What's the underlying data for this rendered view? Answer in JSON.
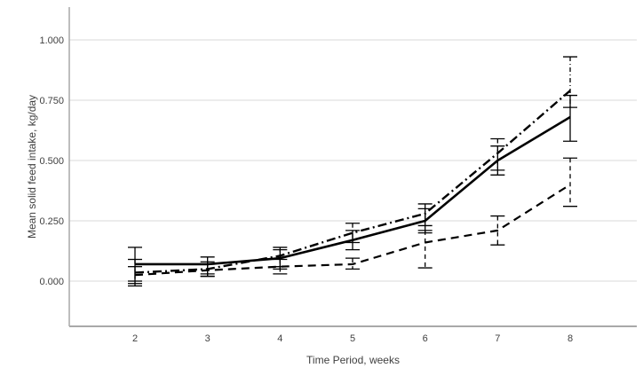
{
  "chart_data": {
    "type": "line",
    "title": "",
    "xlabel": "Time Period, weeks",
    "ylabel": "Mean solid feed intake, kg/day",
    "x": [
      2,
      3,
      4,
      5,
      6,
      7,
      8
    ],
    "x_tick_labels": [
      "2",
      "3",
      "4",
      "5",
      "6",
      "7",
      "8"
    ],
    "y_tick_values": [
      0.0,
      0.25,
      0.5,
      0.75,
      1.0
    ],
    "y_tick_labels": [
      "0.000",
      "0.250",
      "0.500",
      "0.750",
      "1.000"
    ],
    "xlim": [
      1.1,
      8.9
    ],
    "ylim": [
      -0.19,
      1.14
    ],
    "grid": "horizontal",
    "legend": "none",
    "error_bars": true,
    "series": [
      {
        "name": "dashed",
        "line_style": "dashed",
        "color": "#000000",
        "values": [
          0.025,
          0.045,
          0.06,
          0.07,
          0.16,
          0.21,
          0.4
        ],
        "ci": [
          [
            -0.01,
            0.06
          ],
          [
            0.02,
            0.07
          ],
          [
            0.03,
            0.09
          ],
          [
            0.05,
            0.095
          ],
          [
            0.055,
            0.21
          ],
          [
            0.15,
            0.27
          ],
          [
            0.31,
            0.51
          ]
        ]
      },
      {
        "name": "solid",
        "line_style": "solid",
        "color": "#000000",
        "values": [
          0.07,
          0.07,
          0.095,
          0.17,
          0.25,
          0.5,
          0.68
        ],
        "ci": [
          [
            -0.02,
            0.14
          ],
          [
            0.03,
            0.1
          ],
          [
            0.05,
            0.13
          ],
          [
            0.13,
            0.21
          ],
          [
            0.2,
            0.3
          ],
          [
            0.44,
            0.56
          ],
          [
            0.58,
            0.77
          ]
        ]
      },
      {
        "name": "dash-dot",
        "line_style": "dash-dot",
        "color": "#000000",
        "values": [
          0.035,
          0.05,
          0.105,
          0.2,
          0.28,
          0.53,
          0.79
        ],
        "ci": [
          [
            0.0,
            0.09
          ],
          [
            0.02,
            0.08
          ],
          [
            0.06,
            0.14
          ],
          [
            0.16,
            0.24
          ],
          [
            0.23,
            0.32
          ],
          [
            0.46,
            0.59
          ],
          [
            0.72,
            0.93
          ]
        ]
      }
    ]
  },
  "colors": {
    "background": "#ffffff",
    "line": "#000000",
    "grid": "#d9d9d9",
    "axis": "#a8a8a8",
    "text": "#3f3f3f"
  }
}
